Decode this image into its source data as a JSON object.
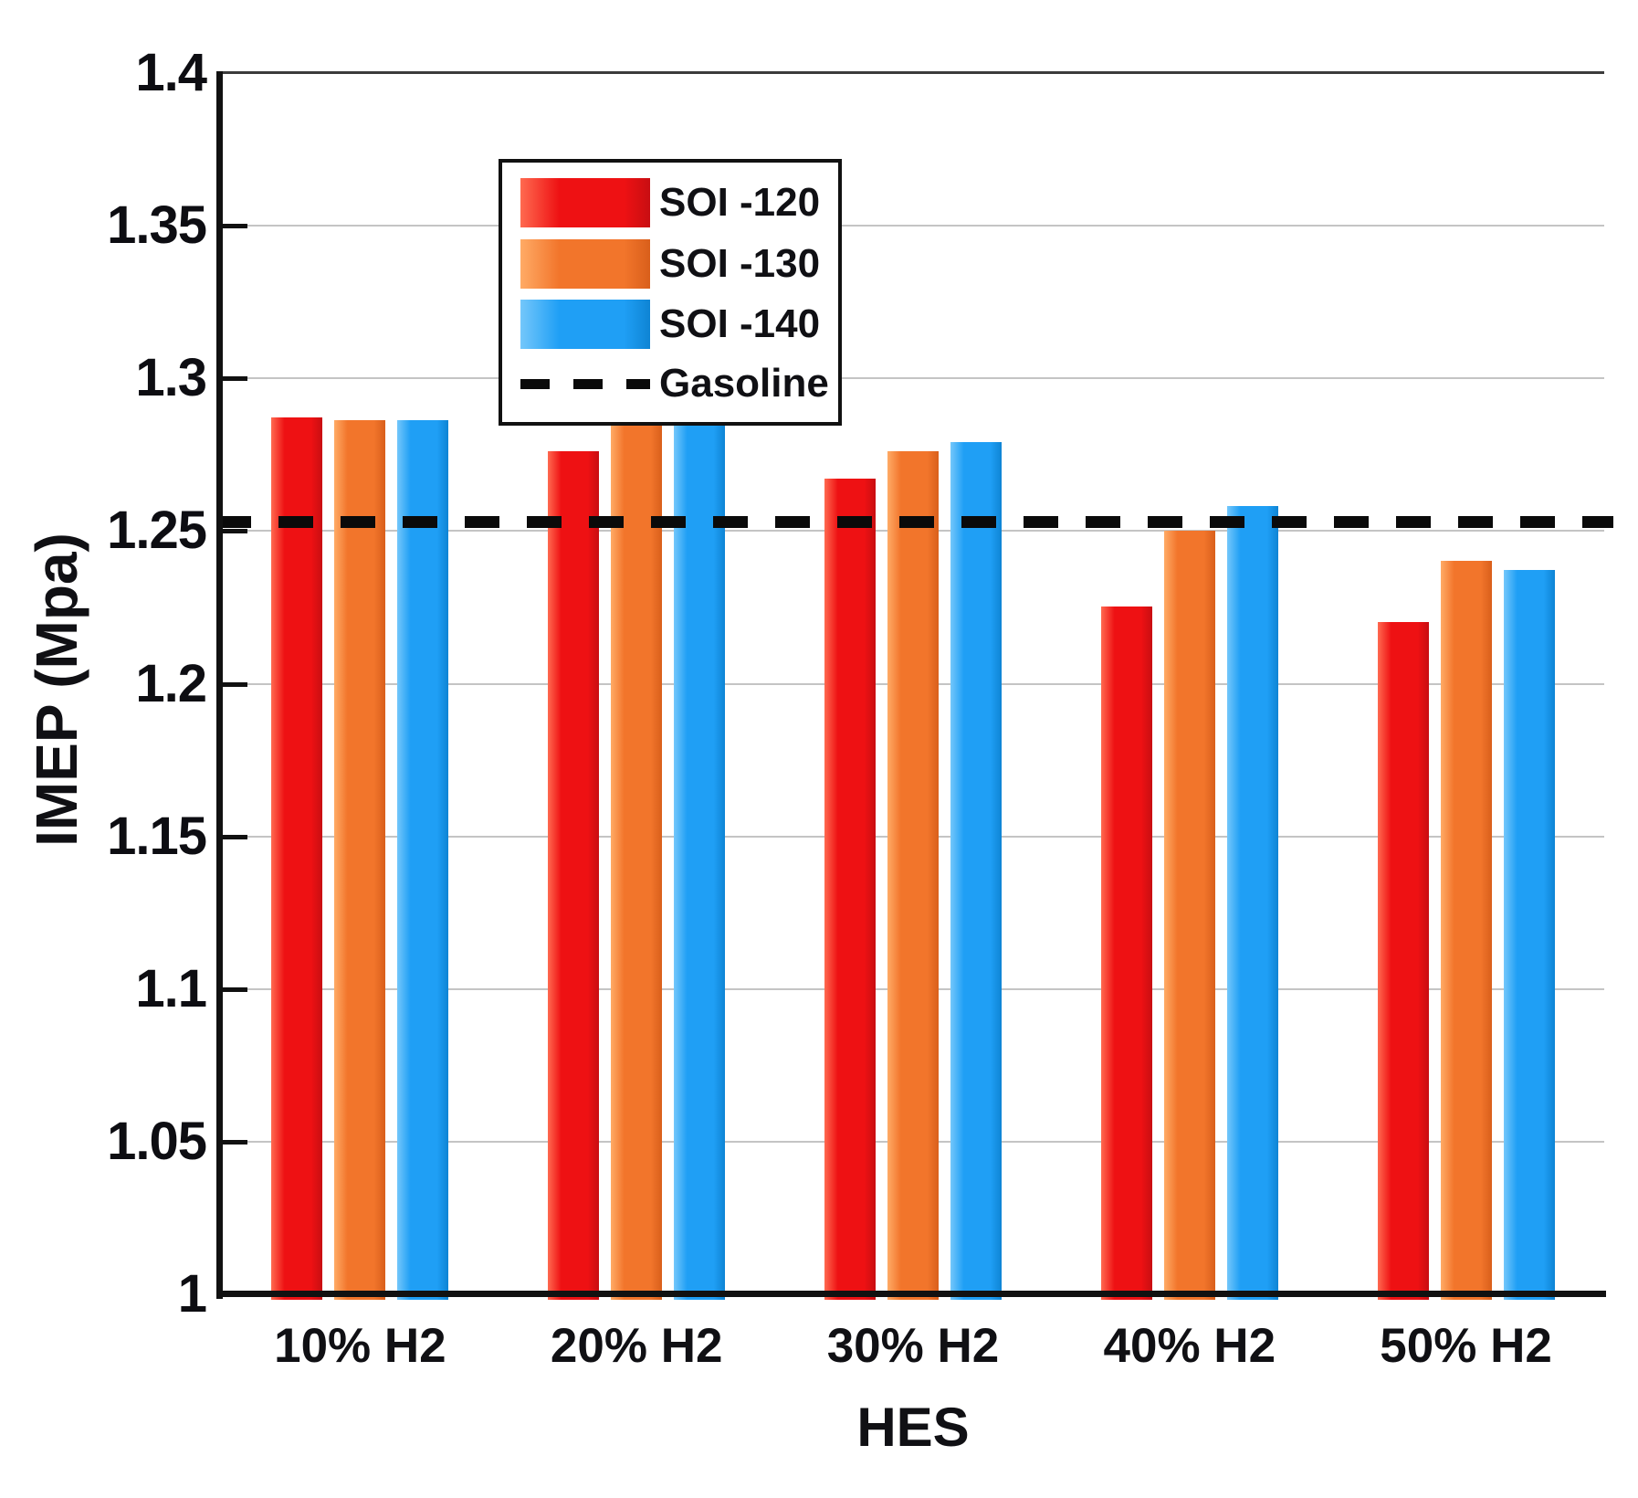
{
  "chart_data": {
    "type": "bar",
    "title": "",
    "xlabel": "HES",
    "ylabel": "IMEP (Mpa)",
    "categories": [
      "10% H2",
      "20% H2",
      "30% H2",
      "40% H2",
      "50% H2"
    ],
    "series": [
      {
        "name": "SOI -120",
        "color": "#ee1113",
        "color_light": "#ff6a50",
        "color_dark": "#c80e12",
        "values": [
          1.289,
          1.278,
          1.269,
          1.227,
          1.222
        ]
      },
      {
        "name": "SOI -130",
        "color": "#f2752b",
        "color_light": "#ffab66",
        "color_dark": "#d95f1b",
        "values": [
          1.288,
          1.295,
          1.278,
          1.252,
          1.242
        ]
      },
      {
        "name": "SOI -140",
        "color": "#1f9ff5",
        "color_light": "#74c7fb",
        "color_dark": "#0e84d4",
        "values": [
          1.288,
          1.3,
          1.281,
          1.26,
          1.239
        ]
      }
    ],
    "reference_line": {
      "name": "Gasoline",
      "value": 1.253,
      "color": "#0a0a0a",
      "style": "dashed"
    },
    "ylim": [
      1.0,
      1.4
    ],
    "yticks": [
      1.0,
      1.05,
      1.1,
      1.15,
      1.2,
      1.25,
      1.3,
      1.35,
      1.4
    ],
    "ytick_labels": [
      "1",
      "1.05",
      "1.1",
      "1.15",
      "1.2",
      "1.25",
      "1.3",
      "1.35",
      "1.4"
    ],
    "grid": "horizontal",
    "legend_position": "top-left",
    "style": {
      "axis_color": "#111111",
      "grid_color": "#c4c4c4",
      "background": "#ffffff"
    }
  }
}
